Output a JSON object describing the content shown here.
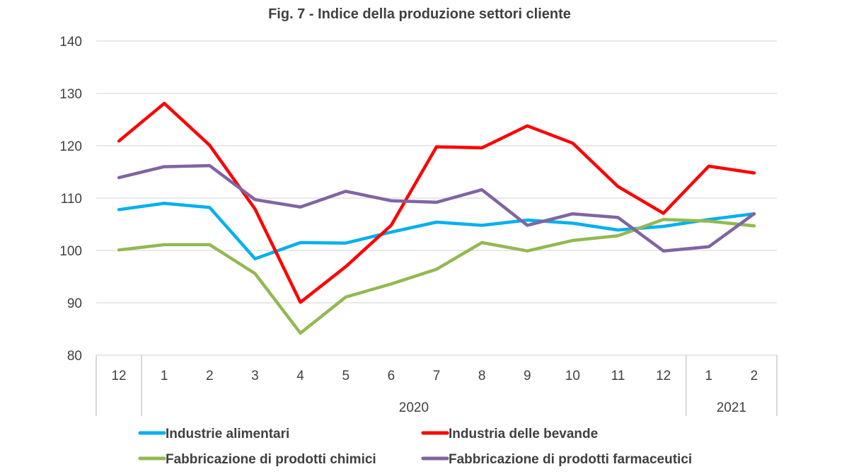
{
  "chart_data": {
    "type": "line",
    "title": "Fig. 7 - Indice della produzione settori cliente",
    "xlabel": "",
    "ylabel": "",
    "ylim": [
      80,
      140
    ],
    "yticks": [
      "80",
      "90",
      "100",
      "110",
      "120",
      "130",
      "140"
    ],
    "categories": [
      "12",
      "1",
      "2",
      "3",
      "4",
      "5",
      "6",
      "7",
      "8",
      "9",
      "10",
      "11",
      "12",
      "1",
      "2"
    ],
    "year_groups": [
      {
        "label": "",
        "start": 0,
        "end": 0
      },
      {
        "label": "2020",
        "start": 1,
        "end": 12
      },
      {
        "label": "2021",
        "start": 13,
        "end": 14
      }
    ],
    "grid": true,
    "legend_position": "bottom",
    "series": [
      {
        "name": "Industrie alimentari",
        "color": "#00b0f0",
        "values": [
          107.8,
          109.0,
          108.2,
          98.4,
          101.5,
          101.4,
          103.5,
          105.4,
          104.8,
          105.8,
          105.2,
          103.9,
          104.6,
          105.9,
          107.0
        ]
      },
      {
        "name": "Industria delle bevande",
        "color": "#ff0000",
        "values": [
          120.9,
          128.1,
          120.1,
          107.9,
          90.1,
          96.9,
          104.8,
          119.8,
          119.6,
          123.8,
          120.5,
          112.2,
          107.1,
          116.1,
          114.8
        ]
      },
      {
        "name": "Fabbricazione di prodotti chimici",
        "color": "#92b951",
        "values": [
          100.1,
          101.1,
          101.1,
          95.6,
          84.2,
          91.1,
          93.6,
          96.4,
          101.5,
          99.9,
          101.9,
          102.8,
          105.9,
          105.6,
          104.7
        ]
      },
      {
        "name": "Fabbricazione di prodotti farmaceutici",
        "color": "#8064a2",
        "values": [
          113.9,
          116.0,
          116.2,
          109.7,
          108.3,
          111.3,
          109.5,
          109.2,
          111.6,
          104.8,
          107.0,
          106.3,
          99.9,
          100.7,
          107.0
        ]
      }
    ]
  }
}
